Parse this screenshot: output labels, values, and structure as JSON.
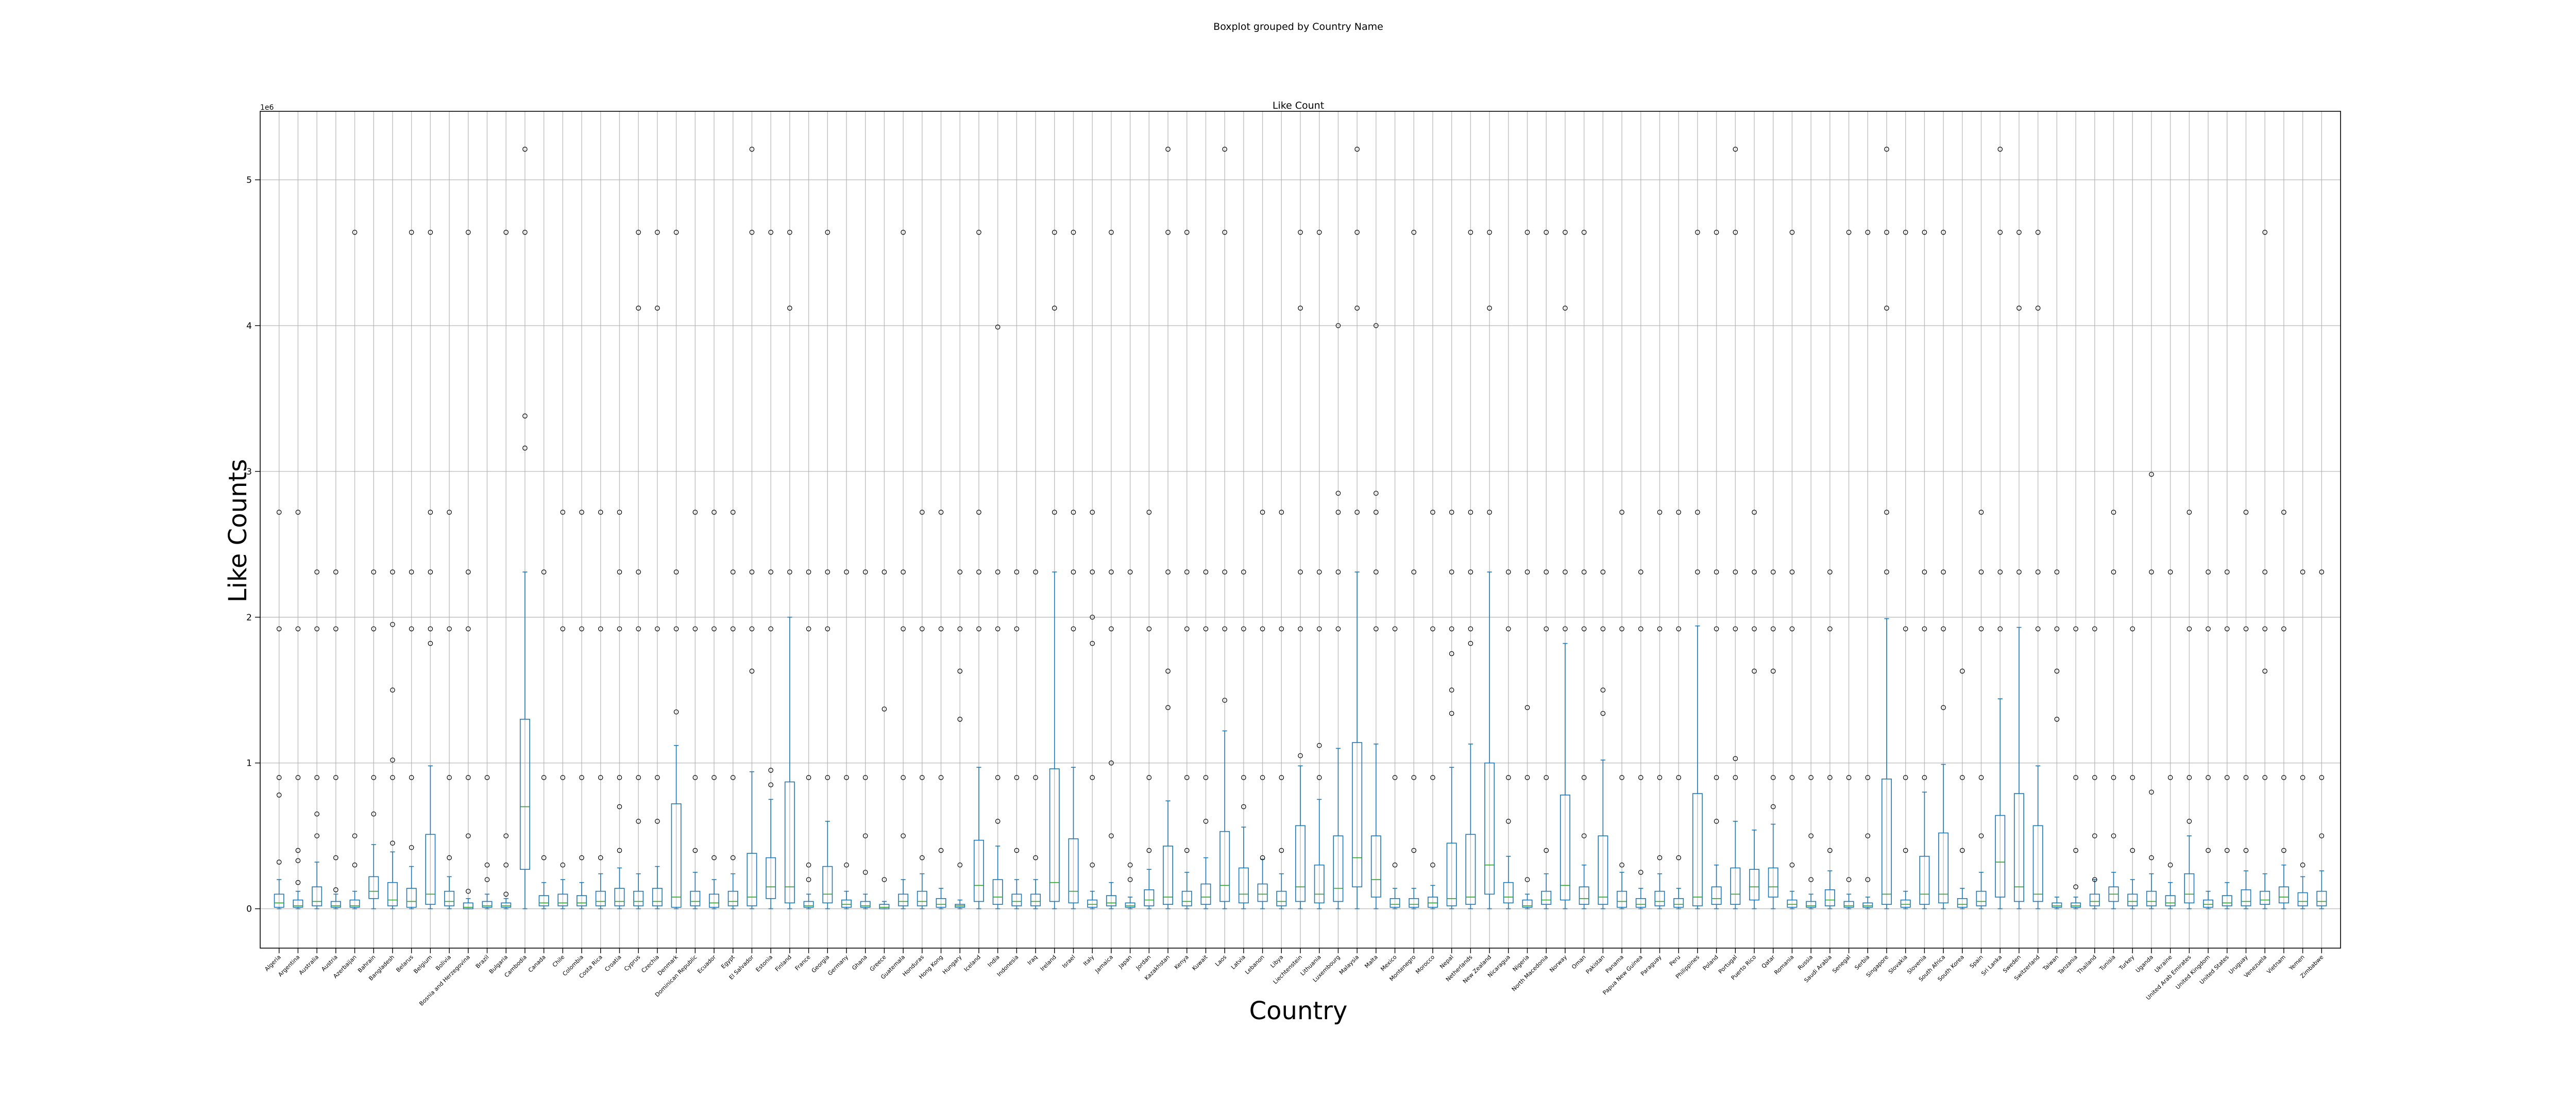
{
  "chart_data": {
    "type": "box",
    "suptitle": "Boxplot grouped by Country Name",
    "title": "Like Count",
    "xlabel": "Country",
    "ylabel": "Like Counts",
    "y_offset_label": "1e6",
    "ylim": [
      -0.27,
      5.47
    ],
    "yticks": [
      0,
      1,
      2,
      3,
      4,
      5
    ],
    "grid": true,
    "categories": [
      "Algeria",
      "Argentina",
      "Australia",
      "Austria",
      "Azerbaijan",
      "Bahrain",
      "Bangladesh",
      "Belarus",
      "Belgium",
      "Bolivia",
      "Bosnia and Herzegovina",
      "Brazil",
      "Bulgaria",
      "Cambodia",
      "Canada",
      "Chile",
      "Colombia",
      "Costa Rica",
      "Croatia",
      "Cyprus",
      "Czechia",
      "Denmark",
      "Dominican Republic",
      "Ecuador",
      "Egypt",
      "El Salvador",
      "Estonia",
      "Finland",
      "France",
      "Georgia",
      "Germany",
      "Ghana",
      "Greece",
      "Guatemala",
      "Honduras",
      "Hong Kong",
      "Hungary",
      "Iceland",
      "India",
      "Indonesia",
      "Iraq",
      "Ireland",
      "Israel",
      "Italy",
      "Jamaica",
      "Japan",
      "Jordan",
      "Kazakhstan",
      "Kenya",
      "Kuwait",
      "Laos",
      "Latvia",
      "Lebanon",
      "Libya",
      "Liechtenstein",
      "Lithuania",
      "Luxembourg",
      "Malaysia",
      "Malta",
      "Mexico",
      "Montenegro",
      "Morocco",
      "Nepal",
      "Netherlands",
      "New Zealand",
      "Nicaragua",
      "Nigeria",
      "North Macedonia",
      "Norway",
      "Oman",
      "Pakistan",
      "Panama",
      "Papua New Guinea",
      "Paraguay",
      "Peru",
      "Philippines",
      "Poland",
      "Portugal",
      "Puerto Rico",
      "Qatar",
      "Romania",
      "Russia",
      "Saudi Arabia",
      "Senegal",
      "Serbia",
      "Singapore",
      "Slovakia",
      "Slovenia",
      "South Africa",
      "South Korea",
      "Spain",
      "Sri Lanka",
      "Sweden",
      "Switzerland",
      "Taiwan",
      "Tanzania",
      "Thailand",
      "Tunisia",
      "Turkey",
      "Uganda",
      "Ukraine",
      "United Arab Emirates",
      "United Kingdom",
      "United States",
      "Uruguay",
      "Venezuela",
      "Vietnam",
      "Yemen",
      "Zimbabwe"
    ],
    "stats": [
      [
        0.0,
        0.01,
        0.04,
        0.1,
        0.2
      ],
      [
        0.0,
        0.01,
        0.02,
        0.06,
        0.12
      ],
      [
        0.0,
        0.02,
        0.05,
        0.15,
        0.32
      ],
      [
        0.0,
        0.01,
        0.02,
        0.05,
        0.1
      ],
      [
        0.0,
        0.01,
        0.02,
        0.06,
        0.12
      ],
      [
        0.0,
        0.07,
        0.12,
        0.22,
        0.44
      ],
      [
        0.0,
        0.02,
        0.06,
        0.18,
        0.39
      ],
      [
        0.0,
        0.01,
        0.05,
        0.14,
        0.29
      ],
      [
        0.0,
        0.03,
        0.1,
        0.51,
        0.98
      ],
      [
        0.0,
        0.02,
        0.05,
        0.12,
        0.22
      ],
      [
        0.0,
        0.0,
        0.01,
        0.04,
        0.07
      ],
      [
        0.0,
        0.01,
        0.02,
        0.05,
        0.1
      ],
      [
        0.0,
        0.01,
        0.02,
        0.04,
        0.07
      ],
      [
        0.0,
        0.27,
        0.7,
        1.3,
        2.31
      ],
      [
        0.0,
        0.02,
        0.04,
        0.09,
        0.18
      ],
      [
        0.0,
        0.02,
        0.04,
        0.1,
        0.2
      ],
      [
        0.0,
        0.02,
        0.04,
        0.09,
        0.18
      ],
      [
        0.0,
        0.02,
        0.05,
        0.12,
        0.24
      ],
      [
        0.0,
        0.02,
        0.05,
        0.14,
        0.28
      ],
      [
        0.0,
        0.02,
        0.05,
        0.12,
        0.24
      ],
      [
        0.0,
        0.02,
        0.05,
        0.14,
        0.29
      ],
      [
        0.0,
        0.01,
        0.08,
        0.72,
        1.12
      ],
      [
        0.0,
        0.02,
        0.05,
        0.12,
        0.25
      ],
      [
        0.0,
        0.01,
        0.04,
        0.1,
        0.2
      ],
      [
        0.0,
        0.02,
        0.05,
        0.12,
        0.24
      ],
      [
        0.0,
        0.02,
        0.08,
        0.38,
        0.94
      ],
      [
        0.0,
        0.07,
        0.15,
        0.35,
        0.75
      ],
      [
        0.0,
        0.04,
        0.15,
        0.87,
        2.0
      ],
      [
        0.0,
        0.01,
        0.02,
        0.05,
        0.1
      ],
      [
        0.0,
        0.04,
        0.1,
        0.29,
        0.6
      ],
      [
        0.0,
        0.01,
        0.03,
        0.06,
        0.12
      ],
      [
        0.0,
        0.01,
        0.02,
        0.05,
        0.1
      ],
      [
        0.0,
        0.0,
        0.01,
        0.03,
        0.05
      ],
      [
        0.0,
        0.02,
        0.05,
        0.1,
        0.2
      ],
      [
        0.0,
        0.02,
        0.05,
        0.12,
        0.24
      ],
      [
        0.0,
        0.01,
        0.03,
        0.07,
        0.14
      ],
      [
        0.0,
        0.01,
        0.02,
        0.03,
        0.06
      ],
      [
        0.0,
        0.05,
        0.16,
        0.47,
        0.97
      ],
      [
        0.0,
        0.03,
        0.08,
        0.2,
        0.43
      ],
      [
        0.0,
        0.02,
        0.05,
        0.1,
        0.2
      ],
      [
        0.0,
        0.02,
        0.05,
        0.1,
        0.2
      ],
      [
        0.0,
        0.05,
        0.18,
        0.96,
        2.31
      ],
      [
        0.0,
        0.04,
        0.12,
        0.48,
        0.97
      ],
      [
        0.0,
        0.01,
        0.03,
        0.06,
        0.12
      ],
      [
        0.0,
        0.02,
        0.04,
        0.09,
        0.18
      ],
      [
        0.0,
        0.01,
        0.02,
        0.04,
        0.08
      ],
      [
        0.0,
        0.02,
        0.06,
        0.13,
        0.27
      ],
      [
        0.0,
        0.03,
        0.08,
        0.43,
        0.74
      ],
      [
        0.0,
        0.02,
        0.05,
        0.12,
        0.25
      ],
      [
        0.0,
        0.03,
        0.08,
        0.17,
        0.35
      ],
      [
        0.0,
        0.05,
        0.16,
        0.53,
        1.22
      ],
      [
        0.0,
        0.04,
        0.1,
        0.28,
        0.56
      ],
      [
        0.0,
        0.05,
        0.1,
        0.17,
        0.34
      ],
      [
        0.0,
        0.02,
        0.05,
        0.12,
        0.24
      ],
      [
        0.0,
        0.05,
        0.15,
        0.57,
        0.98
      ],
      [
        0.0,
        0.04,
        0.1,
        0.3,
        0.75
      ],
      [
        0.0,
        0.05,
        0.14,
        0.5,
        1.1
      ],
      [
        0.0,
        0.15,
        0.35,
        1.14,
        2.31
      ],
      [
        0.0,
        0.08,
        0.2,
        0.5,
        1.13
      ],
      [
        0.0,
        0.01,
        0.03,
        0.07,
        0.14
      ],
      [
        0.0,
        0.01,
        0.03,
        0.07,
        0.14
      ],
      [
        0.0,
        0.01,
        0.04,
        0.08,
        0.16
      ],
      [
        0.0,
        0.02,
        0.07,
        0.45,
        0.97
      ],
      [
        0.0,
        0.03,
        0.08,
        0.51,
        1.13
      ],
      [
        0.0,
        0.1,
        0.3,
        1.0,
        2.31
      ],
      [
        0.0,
        0.04,
        0.08,
        0.18,
        0.36
      ],
      [
        0.0,
        0.01,
        0.02,
        0.06,
        0.1
      ],
      [
        0.0,
        0.03,
        0.06,
        0.12,
        0.24
      ],
      [
        0.0,
        0.06,
        0.16,
        0.78,
        1.82
      ],
      [
        0.0,
        0.03,
        0.07,
        0.15,
        0.3
      ],
      [
        0.0,
        0.03,
        0.08,
        0.5,
        1.02
      ],
      [
        0.0,
        0.01,
        0.05,
        0.12,
        0.25
      ],
      [
        0.0,
        0.01,
        0.03,
        0.07,
        0.14
      ],
      [
        0.0,
        0.02,
        0.05,
        0.12,
        0.24
      ],
      [
        0.0,
        0.01,
        0.03,
        0.07,
        0.14
      ],
      [
        0.0,
        0.02,
        0.08,
        0.79,
        1.94
      ],
      [
        0.0,
        0.03,
        0.07,
        0.15,
        0.3
      ],
      [
        0.0,
        0.03,
        0.1,
        0.28,
        0.6
      ],
      [
        0.0,
        0.06,
        0.15,
        0.27,
        0.54
      ],
      [
        0.0,
        0.08,
        0.15,
        0.28,
        0.58
      ],
      [
        0.0,
        0.01,
        0.03,
        0.06,
        0.12
      ],
      [
        0.0,
        0.01,
        0.02,
        0.05,
        0.1
      ],
      [
        0.0,
        0.02,
        0.06,
        0.13,
        0.26
      ],
      [
        0.0,
        0.01,
        0.02,
        0.05,
        0.1
      ],
      [
        0.0,
        0.01,
        0.02,
        0.04,
        0.08
      ],
      [
        0.0,
        0.03,
        0.1,
        0.89,
        1.99
      ],
      [
        0.0,
        0.01,
        0.03,
        0.06,
        0.12
      ],
      [
        0.0,
        0.03,
        0.1,
        0.36,
        0.8
      ],
      [
        0.0,
        0.04,
        0.1,
        0.52,
        0.99
      ],
      [
        0.0,
        0.01,
        0.03,
        0.07,
        0.14
      ],
      [
        0.0,
        0.02,
        0.05,
        0.12,
        0.25
      ],
      [
        0.0,
        0.08,
        0.32,
        0.64,
        1.44
      ],
      [
        0.0,
        0.05,
        0.15,
        0.79,
        1.93
      ],
      [
        0.0,
        0.05,
        0.1,
        0.57,
        0.98
      ],
      [
        0.0,
        0.01,
        0.02,
        0.04,
        0.08
      ],
      [
        0.0,
        0.01,
        0.02,
        0.04,
        0.08
      ],
      [
        0.0,
        0.02,
        0.05,
        0.1,
        0.2
      ],
      [
        0.0,
        0.05,
        0.1,
        0.15,
        0.25
      ],
      [
        0.0,
        0.02,
        0.05,
        0.1,
        0.2
      ],
      [
        0.0,
        0.02,
        0.05,
        0.12,
        0.24
      ],
      [
        0.0,
        0.02,
        0.04,
        0.09,
        0.18
      ],
      [
        0.0,
        0.04,
        0.1,
        0.24,
        0.5
      ],
      [
        0.0,
        0.01,
        0.03,
        0.06,
        0.12
      ],
      [
        0.0,
        0.02,
        0.04,
        0.09,
        0.18
      ],
      [
        0.0,
        0.02,
        0.05,
        0.13,
        0.26
      ],
      [
        0.0,
        0.03,
        0.06,
        0.12,
        0.24
      ],
      [
        0.0,
        0.04,
        0.08,
        0.15,
        0.3
      ],
      [
        0.0,
        0.02,
        0.05,
        0.11,
        0.22
      ],
      [
        0.0,
        0.02,
        0.05,
        0.12,
        0.26
      ]
    ],
    "fliers": [
      [
        0.32,
        0.78,
        0.9,
        1.92,
        2.72
      ],
      [
        0.18,
        0.33,
        0.4,
        0.9,
        1.92,
        2.72
      ],
      [
        0.5,
        0.65,
        0.9,
        1.92,
        2.31
      ],
      [
        0.13,
        0.35,
        0.9,
        1.92,
        2.31
      ],
      [
        0.3,
        0.5,
        4.64
      ],
      [
        0.65,
        0.9,
        1.92,
        2.31
      ],
      [
        0.45,
        0.9,
        1.02,
        1.5,
        1.95,
        2.31
      ],
      [
        0.42,
        0.9,
        1.92,
        2.31,
        4.64
      ],
      [
        1.82,
        1.92,
        2.31,
        2.72,
        4.64
      ],
      [
        0.35,
        0.9,
        1.92,
        2.72
      ],
      [
        0.12,
        0.5,
        0.9,
        1.92,
        2.31,
        4.64
      ],
      [
        0.2,
        0.3,
        0.9
      ],
      [
        0.1,
        0.3,
        0.5,
        4.64
      ],
      [
        3.16,
        3.38,
        4.64,
        5.21
      ],
      [
        0.35,
        0.9,
        2.31
      ],
      [
        0.3,
        0.9,
        1.92,
        2.72
      ],
      [
        0.35,
        0.9,
        1.92,
        2.72
      ],
      [
        0.35,
        0.9,
        1.92,
        2.72
      ],
      [
        0.4,
        0.7,
        0.9,
        1.92,
        2.31,
        2.72
      ],
      [
        0.6,
        0.9,
        1.92,
        2.31,
        4.12,
        4.64
      ],
      [
        0.6,
        0.9,
        1.92,
        4.12,
        4.64
      ],
      [
        1.35,
        1.92,
        2.31,
        4.64
      ],
      [
        0.4,
        0.9,
        1.92,
        2.72
      ],
      [
        0.35,
        0.9,
        1.92,
        2.72
      ],
      [
        0.35,
        0.9,
        1.92,
        2.31,
        2.72
      ],
      [
        1.63,
        1.92,
        2.31,
        4.64,
        5.21
      ],
      [
        0.85,
        0.95,
        1.92,
        2.31,
        4.64
      ],
      [
        2.31,
        4.12,
        4.64
      ],
      [
        0.2,
        0.3,
        0.9,
        1.92,
        2.31
      ],
      [
        0.9,
        1.92,
        2.31,
        4.64
      ],
      [
        0.3,
        0.9,
        2.31
      ],
      [
        0.25,
        0.5,
        0.9,
        2.31
      ],
      [
        0.2,
        1.37,
        2.31
      ],
      [
        0.5,
        0.9,
        1.92,
        2.31,
        4.64
      ],
      [
        0.35,
        0.9,
        1.92,
        2.72
      ],
      [
        0.4,
        0.9,
        1.92,
        2.72
      ],
      [
        0.3,
        1.3,
        1.63,
        1.92,
        2.31
      ],
      [
        1.92,
        2.31,
        2.72,
        4.64
      ],
      [
        0.6,
        0.9,
        1.92,
        2.31,
        3.99
      ],
      [
        0.4,
        0.9,
        1.92,
        2.31
      ],
      [
        0.35,
        0.9,
        2.31
      ],
      [
        2.72,
        4.12,
        4.64
      ],
      [
        1.92,
        2.31,
        2.72,
        4.64
      ],
      [
        0.3,
        0.9,
        1.82,
        2.0,
        2.31,
        2.72
      ],
      [
        0.5,
        1.0,
        1.92,
        2.31,
        4.64
      ],
      [
        0.2,
        0.3,
        2.31
      ],
      [
        0.4,
        0.9,
        1.92,
        2.72
      ],
      [
        1.38,
        1.63,
        2.31,
        4.64,
        5.21
      ],
      [
        0.4,
        0.9,
        1.92,
        2.31,
        4.64
      ],
      [
        0.6,
        0.9,
        1.92,
        2.31
      ],
      [
        1.43,
        1.92,
        2.31,
        4.64,
        5.21
      ],
      [
        0.7,
        0.9,
        1.92,
        2.31
      ],
      [
        0.35,
        0.9,
        1.92,
        2.72
      ],
      [
        0.4,
        0.9,
        1.92,
        2.72
      ],
      [
        1.05,
        1.92,
        2.31,
        4.12,
        4.64
      ],
      [
        0.9,
        1.12,
        1.92,
        2.31,
        4.64
      ],
      [
        1.92,
        2.31,
        2.72,
        2.85,
        4.0
      ],
      [
        2.72,
        4.12,
        4.64,
        5.21
      ],
      [
        1.92,
        2.31,
        2.72,
        2.85,
        4.0
      ],
      [
        0.3,
        0.9,
        1.92
      ],
      [
        0.4,
        0.9,
        2.31,
        4.64
      ],
      [
        0.3,
        0.9,
        1.92,
        2.72
      ],
      [
        1.34,
        1.5,
        1.75,
        1.92,
        2.31,
        2.72
      ],
      [
        1.82,
        1.92,
        2.31,
        2.72,
        4.64
      ],
      [
        2.72,
        4.12,
        4.64
      ],
      [
        0.6,
        0.9,
        1.92,
        2.31
      ],
      [
        0.2,
        0.9,
        1.38,
        2.31,
        4.64
      ],
      [
        0.4,
        0.9,
        1.92,
        2.31,
        4.64
      ],
      [
        1.92,
        2.31,
        4.12,
        4.64
      ],
      [
        0.5,
        0.9,
        1.92,
        2.31,
        4.64
      ],
      [
        1.34,
        1.5,
        1.92,
        2.31
      ],
      [
        0.3,
        0.9,
        1.92,
        2.72
      ],
      [
        0.25,
        0.9,
        1.92,
        2.31
      ],
      [
        0.35,
        0.9,
        1.92,
        2.72
      ],
      [
        0.35,
        0.9,
        1.92,
        2.72
      ],
      [
        2.31,
        2.72,
        4.64
      ],
      [
        0.6,
        0.9,
        1.92,
        2.31,
        4.64
      ],
      [
        0.9,
        1.03,
        1.92,
        2.31,
        4.64,
        5.21
      ],
      [
        1.63,
        1.92,
        2.31,
        2.72
      ],
      [
        0.7,
        0.9,
        1.63,
        1.92,
        2.31
      ],
      [
        0.3,
        0.9,
        1.92,
        2.31,
        4.64
      ],
      [
        0.2,
        0.5,
        0.9
      ],
      [
        0.4,
        0.9,
        1.92,
        2.31
      ],
      [
        0.2,
        0.9,
        4.64
      ],
      [
        0.2,
        0.5,
        0.9,
        4.64
      ],
      [
        2.31,
        2.72,
        4.12,
        4.64,
        5.21
      ],
      [
        0.4,
        0.9,
        1.92,
        4.64
      ],
      [
        0.9,
        1.92,
        2.31,
        4.64
      ],
      [
        1.38,
        1.92,
        2.31,
        4.64
      ],
      [
        0.4,
        0.9,
        1.63
      ],
      [
        0.5,
        0.9,
        1.92,
        2.31,
        2.72
      ],
      [
        1.92,
        2.31,
        4.64,
        5.21
      ],
      [
        2.31,
        4.12,
        4.64
      ],
      [
        1.92,
        2.31,
        4.12,
        4.64
      ],
      [
        1.3,
        1.63,
        1.92,
        2.31
      ],
      [
        0.15,
        0.4,
        0.9,
        1.92
      ],
      [
        0.2,
        0.5,
        0.9,
        1.92
      ],
      [
        0.5,
        0.9,
        2.31,
        2.72
      ],
      [
        0.4,
        0.9,
        1.92
      ],
      [
        0.35,
        0.8,
        2.31,
        2.98
      ],
      [
        0.3,
        0.9,
        2.31
      ],
      [
        0.6,
        0.9,
        1.92,
        2.72
      ],
      [
        0.4,
        0.9,
        1.92,
        2.31
      ],
      [
        0.4,
        0.9,
        1.92,
        2.31
      ],
      [
        0.4,
        0.9,
        1.92,
        2.72
      ],
      [
        0.9,
        1.63,
        1.92,
        2.31,
        4.64
      ],
      [
        0.4,
        0.9,
        1.92,
        2.72
      ],
      [
        0.3,
        0.9,
        2.31
      ],
      [
        0.5,
        0.9,
        2.31
      ]
    ]
  }
}
